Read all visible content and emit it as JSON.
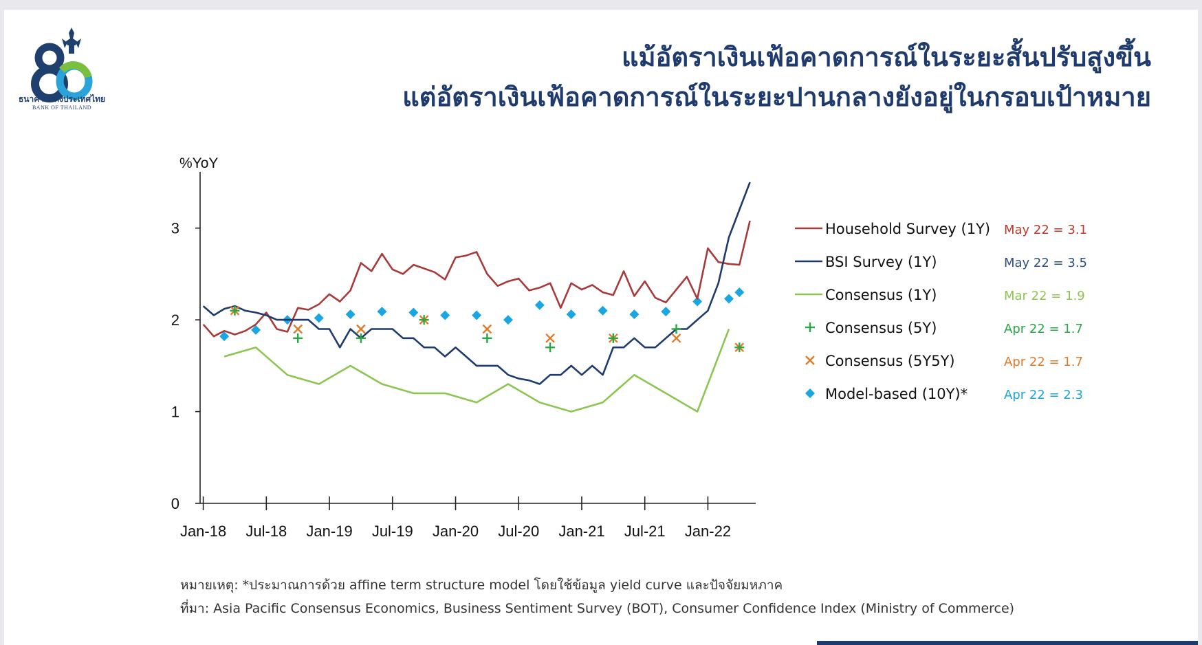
{
  "header": {
    "title_line1": "แม้อัตราเงินเฟ้อคาดการณ์ในระยะสั้นปรับสูงขึ้น",
    "title_line2": "แต่อัตราเงินเฟ้อคาดการณ์ในระยะปานกลางยังอยู่ในกรอบเป้าหมาย"
  },
  "logo": {
    "name_th": "ธนาคารแห่งประเทศไทย",
    "name_en": "BANK OF THAILAND",
    "mark_number": "80",
    "colors": {
      "navy": "#1f3f6e",
      "green": "#7bbf3f",
      "blue": "#2aa4d8"
    }
  },
  "footer": {
    "note": "หมายเหตุ: *ประมาณการด้วย affine term structure model โดยใช้ข้อมูล yield curve และปัจจัยมหภาค",
    "source": "ที่มา: Asia Pacific Consensus Economics, Business Sentiment Survey (BOT), Consumer Confidence Index (Ministry of Commerce)"
  },
  "chart_data": {
    "type": "line",
    "ylabel": "%YoY",
    "ylim": [
      0,
      3.5
    ],
    "yticks": [
      0,
      1,
      2,
      3
    ],
    "x_start": "Jan-18",
    "x_end": "May-22",
    "x_tick_labels": [
      "Jan-18",
      "Jul-18",
      "Jan-19",
      "Jul-19",
      "Jan-20",
      "Jul-20",
      "Jan-21",
      "Jul-21",
      "Jan-22"
    ],
    "legend_position": "right",
    "grid": false,
    "series": [
      {
        "name": "Household Survey (1Y)",
        "style": "line",
        "color": "#a83a3a",
        "annotation": "May 22 = 3.1",
        "annotation_color": "#c0392b",
        "points": [
          [
            "Jan-18",
            1.95
          ],
          [
            "Feb-18",
            1.82
          ],
          [
            "Mar-18",
            1.88
          ],
          [
            "Apr-18",
            1.84
          ],
          [
            "May-18",
            1.88
          ],
          [
            "Jun-18",
            1.95
          ],
          [
            "Jul-18",
            2.08
          ],
          [
            "Aug-18",
            1.9
          ],
          [
            "Sep-18",
            1.87
          ],
          [
            "Oct-18",
            2.13
          ],
          [
            "Nov-18",
            2.11
          ],
          [
            "Dec-18",
            2.17
          ],
          [
            "Jan-19",
            2.28
          ],
          [
            "Feb-19",
            2.2
          ],
          [
            "Mar-19",
            2.32
          ],
          [
            "Apr-19",
            2.62
          ],
          [
            "May-19",
            2.53
          ],
          [
            "Jun-19",
            2.72
          ],
          [
            "Jul-19",
            2.55
          ],
          [
            "Aug-19",
            2.5
          ],
          [
            "Sep-19",
            2.6
          ],
          [
            "Oct-19",
            2.56
          ],
          [
            "Nov-19",
            2.52
          ],
          [
            "Dec-19",
            2.44
          ],
          [
            "Jan-20",
            2.68
          ],
          [
            "Feb-20",
            2.7
          ],
          [
            "Mar-20",
            2.74
          ],
          [
            "Apr-20",
            2.5
          ],
          [
            "May-20",
            2.37
          ],
          [
            "Jun-20",
            2.42
          ],
          [
            "Jul-20",
            2.45
          ],
          [
            "Aug-20",
            2.32
          ],
          [
            "Sep-20",
            2.35
          ],
          [
            "Oct-20",
            2.4
          ],
          [
            "Nov-20",
            2.13
          ],
          [
            "Dec-20",
            2.4
          ],
          [
            "Jan-21",
            2.33
          ],
          [
            "Feb-21",
            2.38
          ],
          [
            "Mar-21",
            2.3
          ],
          [
            "Apr-21",
            2.27
          ],
          [
            "May-21",
            2.53
          ],
          [
            "Jun-21",
            2.26
          ],
          [
            "Jul-21",
            2.42
          ],
          [
            "Aug-21",
            2.24
          ],
          [
            "Sep-21",
            2.19
          ],
          [
            "Oct-21",
            2.33
          ],
          [
            "Nov-21",
            2.47
          ],
          [
            "Dec-21",
            2.23
          ],
          [
            "Jan-22",
            2.78
          ],
          [
            "Feb-22",
            2.63
          ],
          [
            "Mar-22",
            2.61
          ],
          [
            "Apr-22",
            2.6
          ],
          [
            "May-22",
            3.08
          ]
        ]
      },
      {
        "name": "BSI Survey (1Y)",
        "style": "line",
        "color": "#1f3b6e",
        "annotation": "May 22 = 3.5",
        "annotation_color": "#2e4f85",
        "points": [
          [
            "Jan-18",
            2.15
          ],
          [
            "Feb-18",
            2.05
          ],
          [
            "Mar-18",
            2.12
          ],
          [
            "Apr-18",
            2.15
          ],
          [
            "May-18",
            2.1
          ],
          [
            "Jun-18",
            2.08
          ],
          [
            "Jul-18",
            2.05
          ],
          [
            "Aug-18",
            2.0
          ],
          [
            "Sep-18",
            2.0
          ],
          [
            "Oct-18",
            2.0
          ],
          [
            "Nov-18",
            2.0
          ],
          [
            "Dec-18",
            1.9
          ],
          [
            "Jan-19",
            1.9
          ],
          [
            "Feb-19",
            1.7
          ],
          [
            "Mar-19",
            1.9
          ],
          [
            "Apr-19",
            1.8
          ],
          [
            "May-19",
            1.9
          ],
          [
            "Jun-19",
            1.9
          ],
          [
            "Jul-19",
            1.9
          ],
          [
            "Aug-19",
            1.8
          ],
          [
            "Sep-19",
            1.8
          ],
          [
            "Oct-19",
            1.7
          ],
          [
            "Nov-19",
            1.7
          ],
          [
            "Dec-19",
            1.6
          ],
          [
            "Jan-20",
            1.7
          ],
          [
            "Feb-20",
            1.6
          ],
          [
            "Mar-20",
            1.5
          ],
          [
            "Apr-20",
            1.5
          ],
          [
            "May-20",
            1.5
          ],
          [
            "Jun-20",
            1.4
          ],
          [
            "Jul-20",
            1.36
          ],
          [
            "Aug-20",
            1.34
          ],
          [
            "Sep-20",
            1.3
          ],
          [
            "Oct-20",
            1.4
          ],
          [
            "Nov-20",
            1.4
          ],
          [
            "Dec-20",
            1.5
          ],
          [
            "Jan-21",
            1.4
          ],
          [
            "Feb-21",
            1.5
          ],
          [
            "Mar-21",
            1.4
          ],
          [
            "Apr-21",
            1.7
          ],
          [
            "May-21",
            1.7
          ],
          [
            "Jun-21",
            1.8
          ],
          [
            "Jul-21",
            1.7
          ],
          [
            "Aug-21",
            1.7
          ],
          [
            "Sep-21",
            1.8
          ],
          [
            "Oct-21",
            1.9
          ],
          [
            "Nov-21",
            1.9
          ],
          [
            "Dec-21",
            2.0
          ],
          [
            "Jan-22",
            2.1
          ],
          [
            "Feb-22",
            2.4
          ],
          [
            "Mar-22",
            2.9
          ],
          [
            "Apr-22",
            3.2
          ],
          [
            "May-22",
            3.5
          ]
        ]
      },
      {
        "name": "Consensus (1Y)",
        "style": "line",
        "color": "#8cc652",
        "annotation": "Mar 22 = 1.9",
        "annotation_color": "#8cc652",
        "points": [
          [
            "Mar-18",
            1.6
          ],
          [
            "Jun-18",
            1.7
          ],
          [
            "Sep-18",
            1.4
          ],
          [
            "Dec-18",
            1.3
          ],
          [
            "Mar-19",
            1.5
          ],
          [
            "Jun-19",
            1.3
          ],
          [
            "Sep-19",
            1.2
          ],
          [
            "Dec-19",
            1.2
          ],
          [
            "Mar-20",
            1.1
          ],
          [
            "Jun-20",
            1.3
          ],
          [
            "Sep-20",
            1.1
          ],
          [
            "Dec-20",
            1.0
          ],
          [
            "Mar-21",
            1.1
          ],
          [
            "Jun-21",
            1.4
          ],
          [
            "Sep-21",
            1.2
          ],
          [
            "Dec-21",
            1.0
          ],
          [
            "Mar-22",
            1.9
          ]
        ]
      },
      {
        "name": "Consensus (5Y)",
        "style": "plus",
        "color": "#27a845",
        "annotation": "Apr 22 = 1.7",
        "annotation_color": "#27a845",
        "points": [
          [
            "Apr-18",
            2.1
          ],
          [
            "Oct-18",
            1.8
          ],
          [
            "Apr-19",
            1.8
          ],
          [
            "Oct-19",
            2.0
          ],
          [
            "Apr-20",
            1.8
          ],
          [
            "Oct-20",
            1.7
          ],
          [
            "Apr-21",
            1.8
          ],
          [
            "Oct-21",
            1.9
          ],
          [
            "Apr-22",
            1.7
          ]
        ]
      },
      {
        "name": "Consensus (5Y5Y)",
        "style": "cross",
        "color": "#e07b2a",
        "annotation": "Apr 22 = 1.7",
        "annotation_color": "#e07b2a",
        "points": [
          [
            "Apr-18",
            2.1
          ],
          [
            "Oct-18",
            1.9
          ],
          [
            "Apr-19",
            1.9
          ],
          [
            "Oct-19",
            2.0
          ],
          [
            "Apr-20",
            1.9
          ],
          [
            "Oct-20",
            1.8
          ],
          [
            "Apr-21",
            1.8
          ],
          [
            "Oct-21",
            1.8
          ],
          [
            "Apr-22",
            1.7
          ]
        ]
      },
      {
        "name": "Model-based (10Y)*",
        "style": "diamond",
        "color": "#1aa6e0",
        "annotation": "Apr 22 = 2.3",
        "annotation_color": "#1aa6e0",
        "points": [
          [
            "Mar-18",
            1.82
          ],
          [
            "Jun-18",
            1.89
          ],
          [
            "Sep-18",
            2.0
          ],
          [
            "Dec-18",
            2.02
          ],
          [
            "Mar-19",
            2.06
          ],
          [
            "Jun-19",
            2.09
          ],
          [
            "Sep-19",
            2.08
          ],
          [
            "Dec-19",
            2.05
          ],
          [
            "Mar-20",
            2.05
          ],
          [
            "Jun-20",
            2.0
          ],
          [
            "Sep-20",
            2.16
          ],
          [
            "Dec-20",
            2.06
          ],
          [
            "Mar-21",
            2.1
          ],
          [
            "Jun-21",
            2.06
          ],
          [
            "Sep-21",
            2.09
          ],
          [
            "Dec-21",
            2.2
          ],
          [
            "Mar-22",
            2.23
          ],
          [
            "Apr-22",
            2.3
          ]
        ]
      }
    ]
  }
}
